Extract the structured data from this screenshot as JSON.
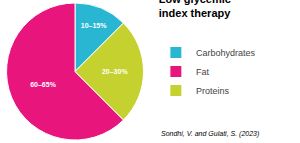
{
  "chart_data": {
    "type": "pie",
    "title": "Low glycemic\nindex therapy",
    "categories": [
      "Carbohydrates",
      "Fat",
      "Proteins"
    ],
    "values": [
      12.5,
      62.5,
      25.0
    ],
    "value_labels": [
      "10–15%",
      "60–65%",
      "20–30%"
    ],
    "colors": [
      "#29b6d2",
      "#e8157d",
      "#c5d12e"
    ],
    "data_labels": true,
    "legend": "right",
    "annotations": [
      "Sondhi, V. and Gulati, S. (2023)"
    ]
  }
}
